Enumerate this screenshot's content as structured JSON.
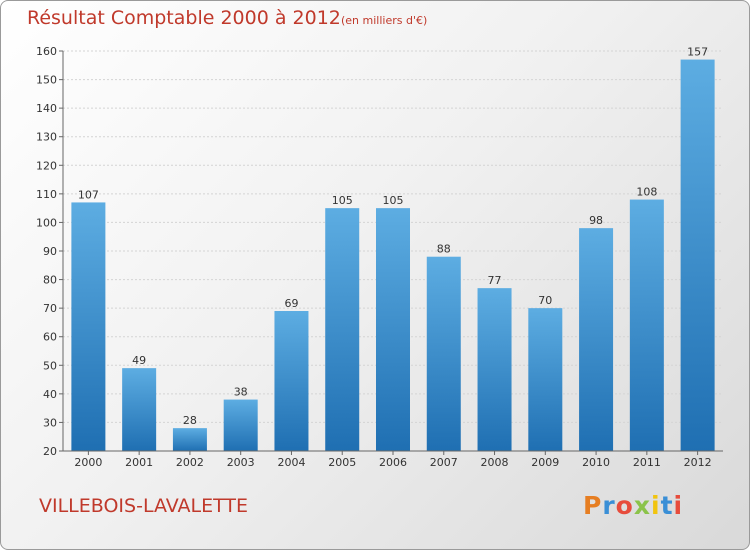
{
  "title": "Résultat Comptable 2000 à 2012",
  "unit_note": "(en milliers d'€)",
  "commune": "VILLEBOIS-LAVALETTE",
  "logo": {
    "text": "Proxiti",
    "colors": [
      "#e67e22",
      "#3a8fd6",
      "#e74c3c",
      "#8bc34a",
      "#f1c40f",
      "#3a8fd6",
      "#e74c3c"
    ]
  },
  "colors": {
    "title": "#c0392b",
    "bar_light": "#5dade2",
    "bar_dark": "#1f6fb2"
  },
  "chart_data": {
    "type": "bar",
    "categories": [
      "2000",
      "2001",
      "2002",
      "2003",
      "2004",
      "2005",
      "2006",
      "2007",
      "2008",
      "2009",
      "2010",
      "2011",
      "2012"
    ],
    "values": [
      107,
      49,
      28,
      38,
      69,
      105,
      105,
      88,
      77,
      70,
      98,
      108,
      157
    ],
    "ylim": [
      20,
      160
    ],
    "yticks": [
      20,
      30,
      40,
      50,
      60,
      70,
      80,
      90,
      100,
      110,
      120,
      130,
      140,
      150,
      160
    ],
    "grid": true,
    "data_labels": true
  }
}
